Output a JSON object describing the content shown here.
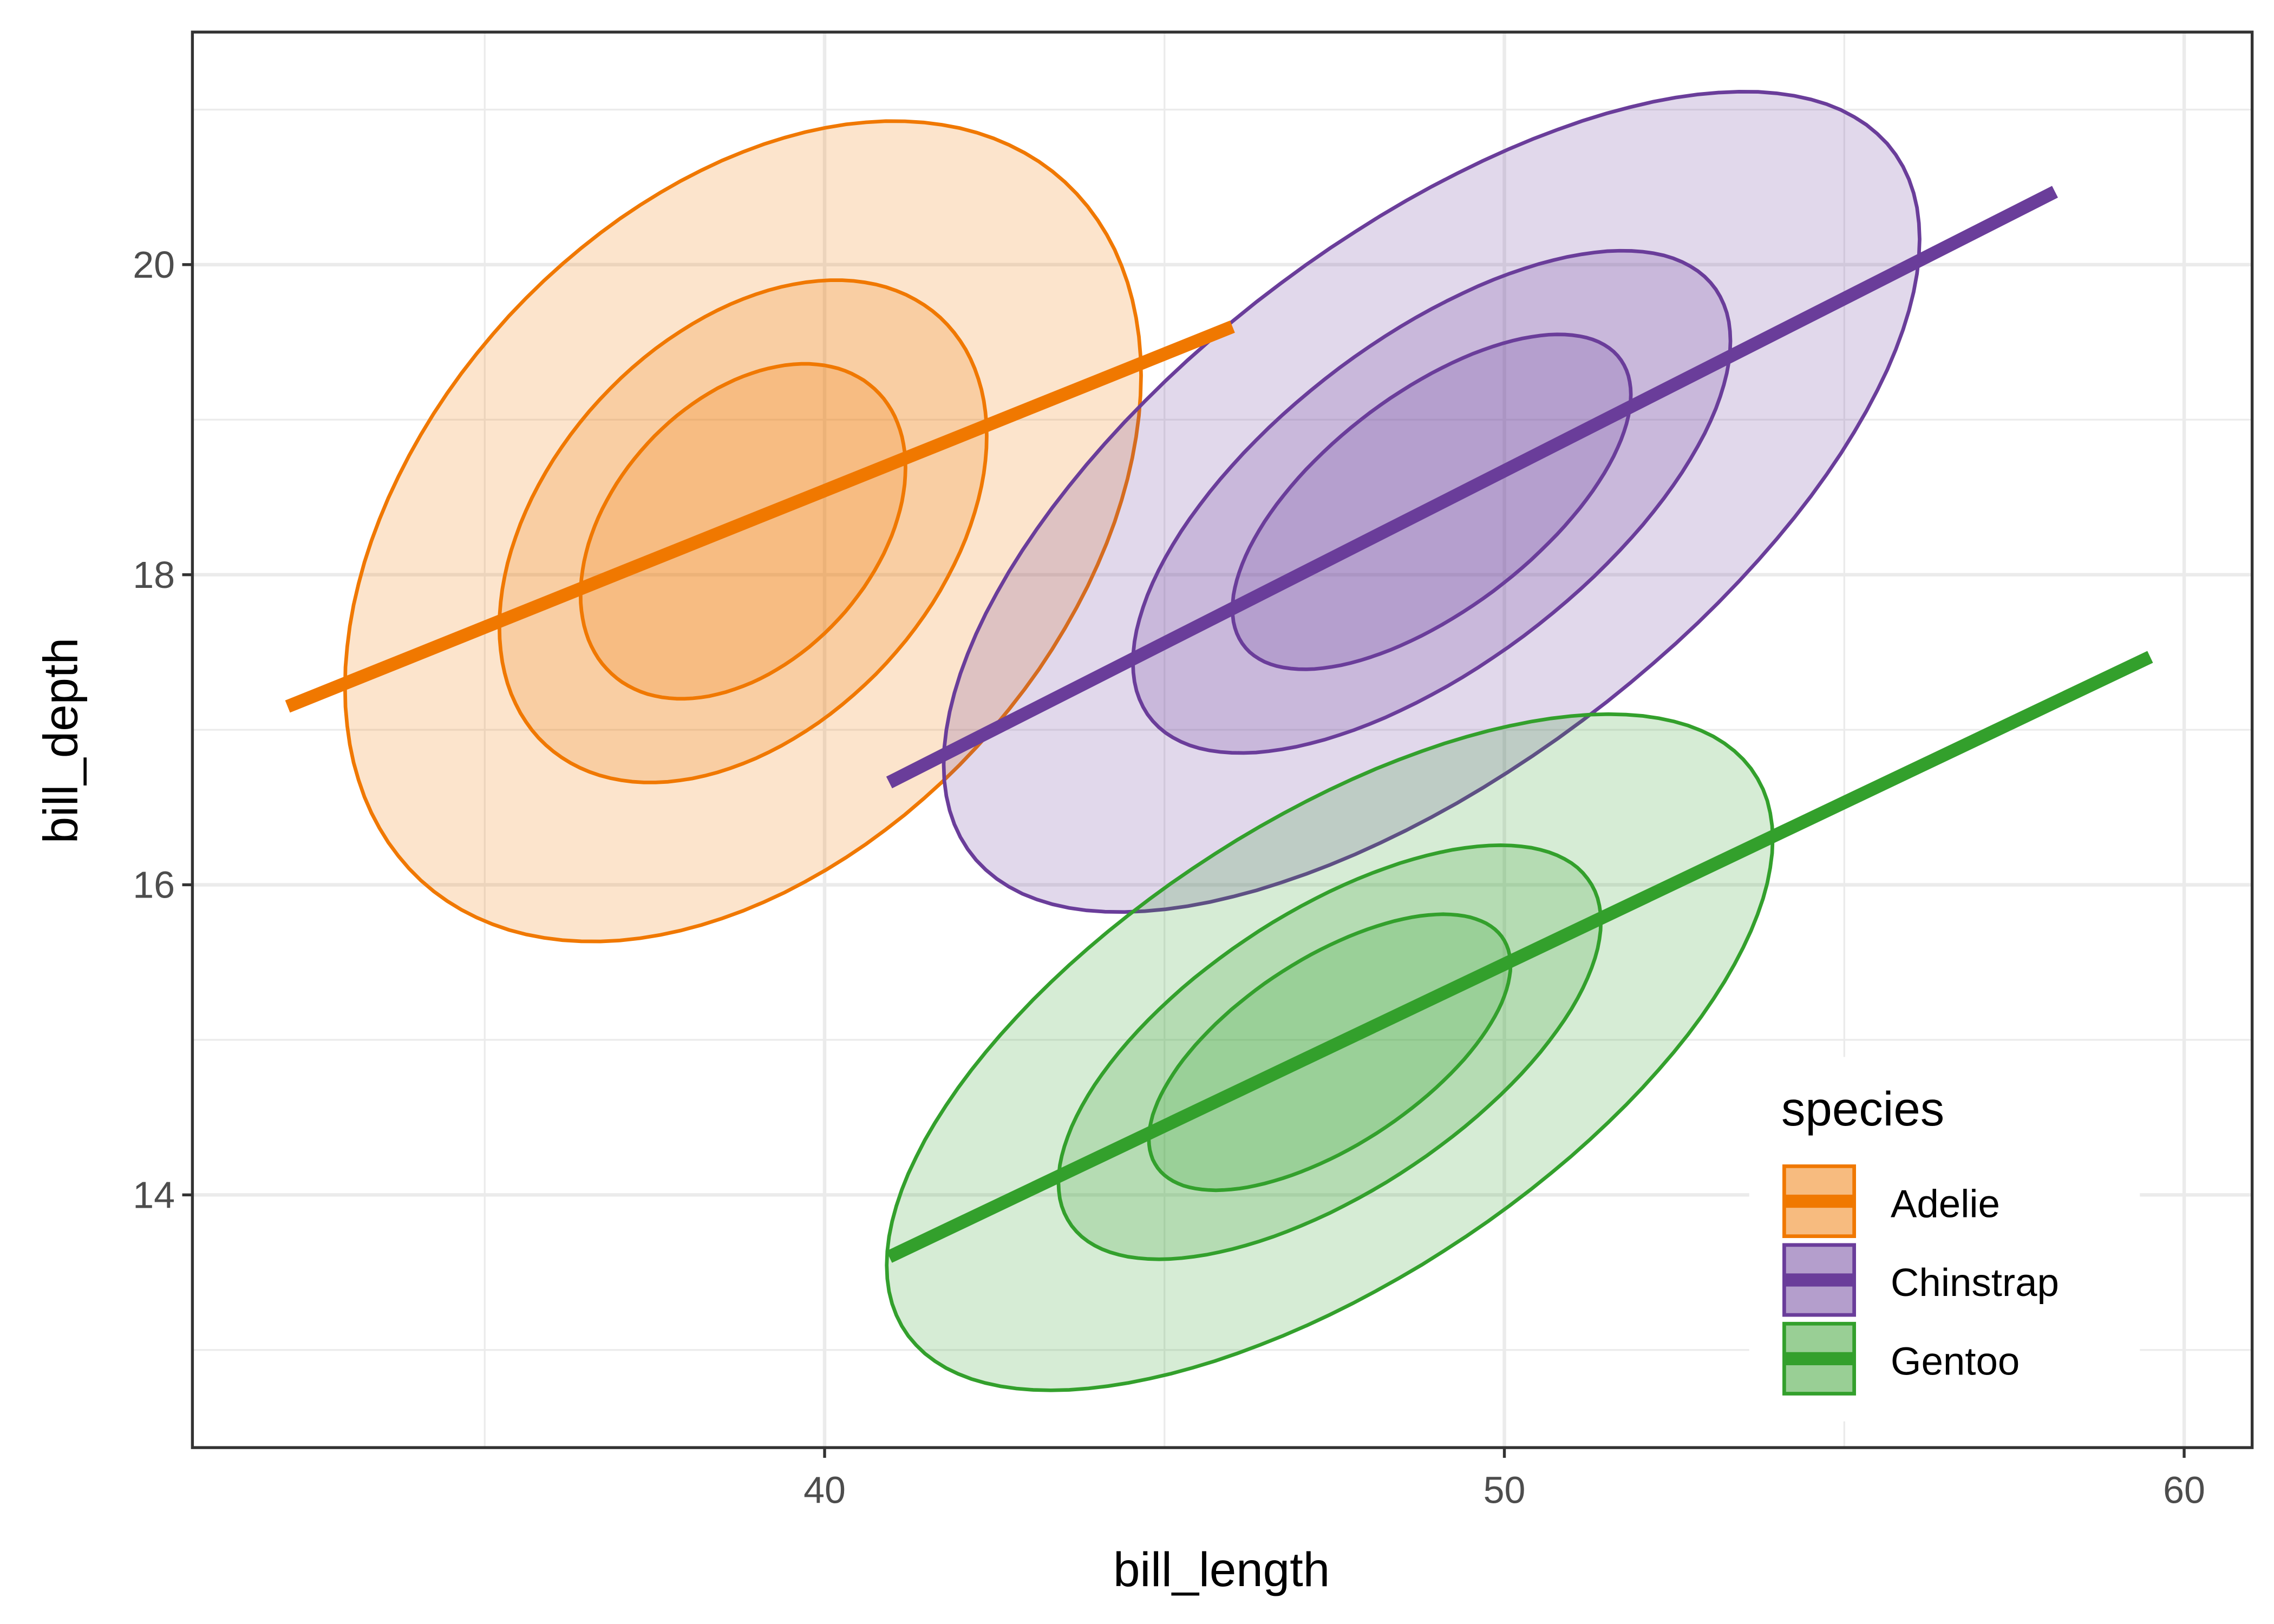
{
  "chart_data": {
    "type": "scatter",
    "subtype": "density-ellipses-with-regression-lines",
    "title": "",
    "xlabel": "bill_length",
    "ylabel": "bill_depth",
    "xlim": [
      30.7,
      61.0
    ],
    "ylim": [
      12.37,
      21.5
    ],
    "xticks": [
      40,
      50,
      60
    ],
    "yticks": [
      14,
      16,
      18,
      20
    ],
    "xtick_labels": [
      "40",
      "50",
      "60"
    ],
    "ytick_labels": [
      "14",
      "16",
      "18",
      "20"
    ],
    "grid": true,
    "legend": {
      "title": "species",
      "placement": "bottom-right"
    },
    "contour_levels": [
      1,
      1.5,
      2.45
    ],
    "series": [
      {
        "name": "Adelie",
        "color": "#F07800",
        "center": [
          38.8,
          18.28
        ],
        "sd_x": 2.39,
        "sd_y": 1.08,
        "rho": 0.38,
        "line": {
          "x": [
            32.1,
            46.0
          ],
          "y": [
            17.15,
            19.6
          ]
        }
      },
      {
        "name": "Chinstrap",
        "color": "#6A3D9A",
        "center": [
          48.93,
          18.47
        ],
        "sd_x": 2.93,
        "sd_y": 1.08,
        "rho": 0.64,
        "line": {
          "x": [
            40.95,
            58.1
          ],
          "y": [
            16.66,
            20.47
          ]
        }
      },
      {
        "name": "Gentoo",
        "color": "#33A02C",
        "center": [
          47.43,
          14.92
        ],
        "sd_x": 2.66,
        "sd_y": 0.89,
        "rho": 0.63,
        "line": {
          "x": [
            40.95,
            59.5
          ],
          "y": [
            13.6,
            17.47
          ]
        }
      }
    ]
  }
}
